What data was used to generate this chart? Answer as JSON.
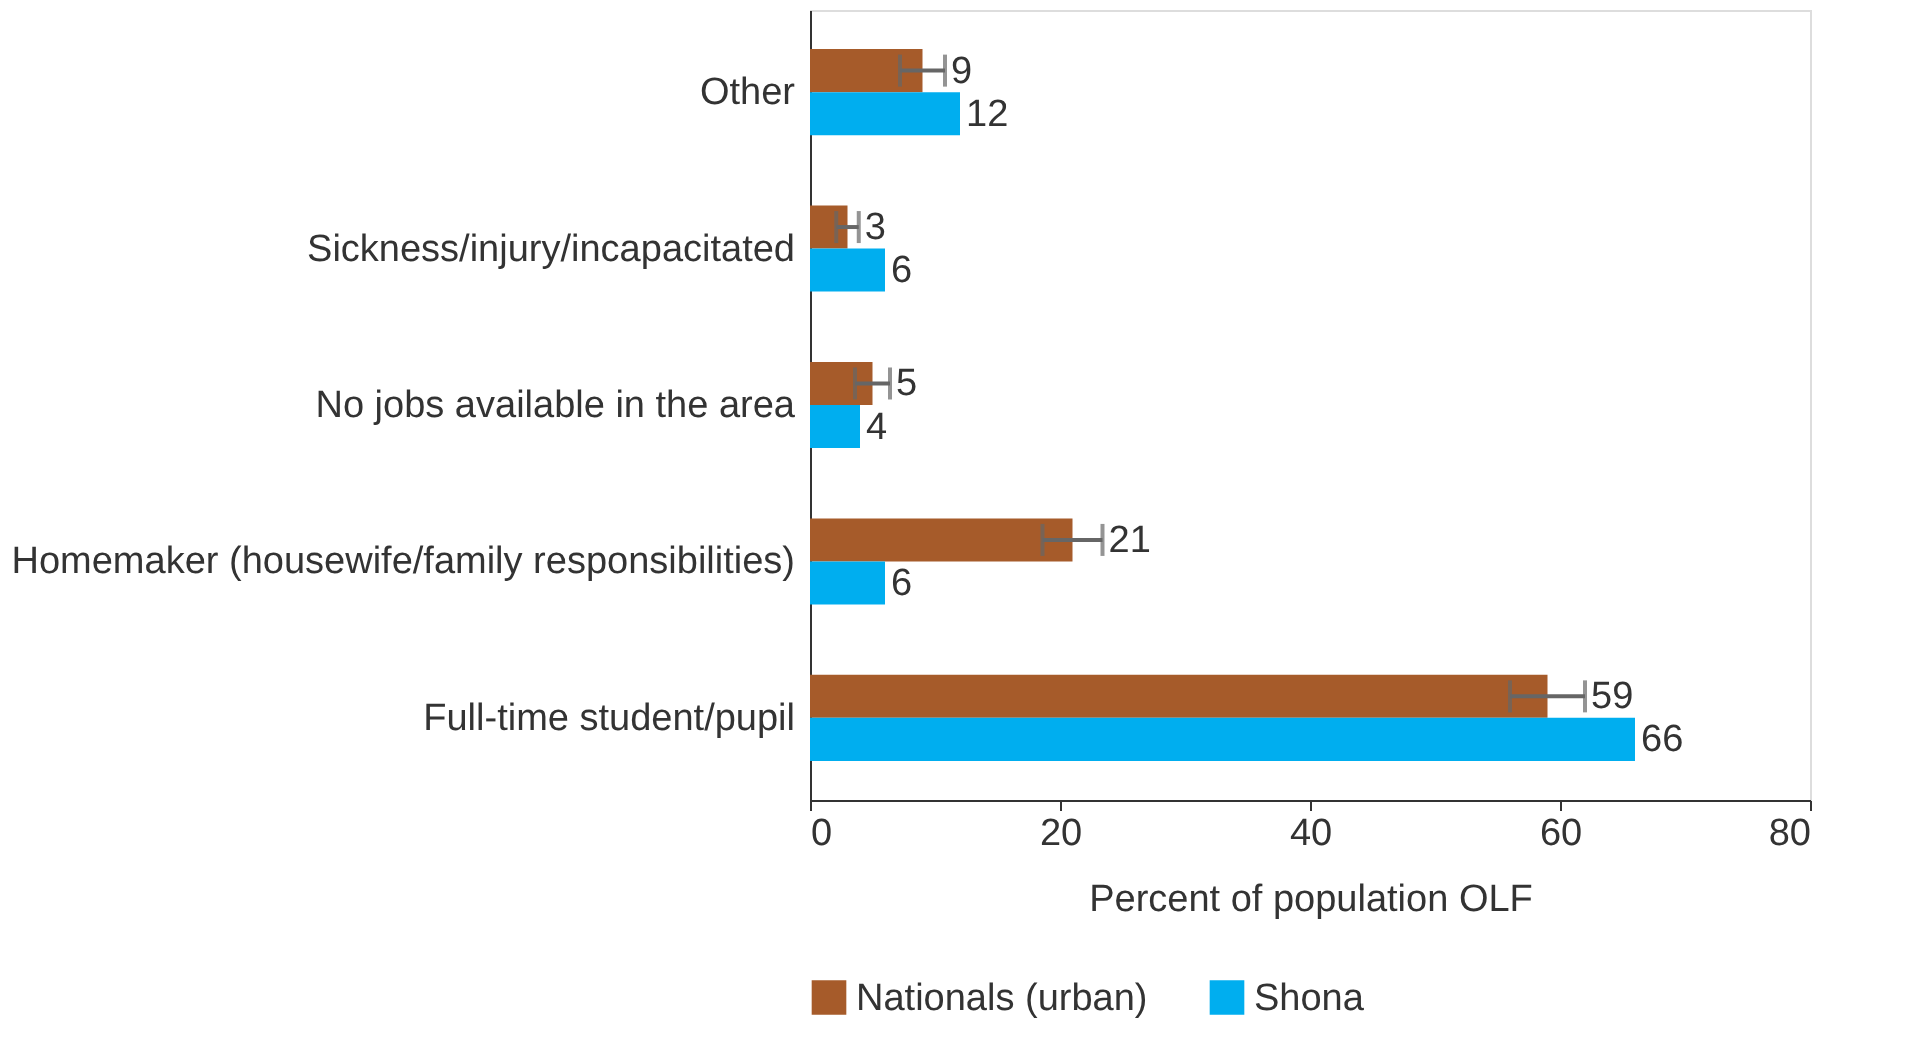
{
  "chart_data": {
    "type": "bar",
    "orientation": "horizontal",
    "xlabel": "Percent of population OLF",
    "categories": [
      "Other",
      "Sickness/injury/incapacitated",
      "No jobs available in the area",
      "Homemaker (housewife/family responsibilities)",
      "Full-time student/pupil"
    ],
    "series": [
      {
        "name": "Nationals (urban)",
        "color": "#a65b2a",
        "values": [
          9,
          3,
          5,
          21,
          59
        ],
        "errors": [
          1.8,
          0.9,
          1.4,
          2.4,
          3
        ]
      },
      {
        "name": "Shona",
        "color": "#00aeef",
        "values": [
          12,
          6,
          4,
          6,
          66
        ]
      }
    ],
    "xlim": [
      0,
      80
    ],
    "xticks": [
      0,
      20,
      40,
      60,
      80
    ],
    "grid": false,
    "legend": "bottom",
    "data_labels": true
  }
}
